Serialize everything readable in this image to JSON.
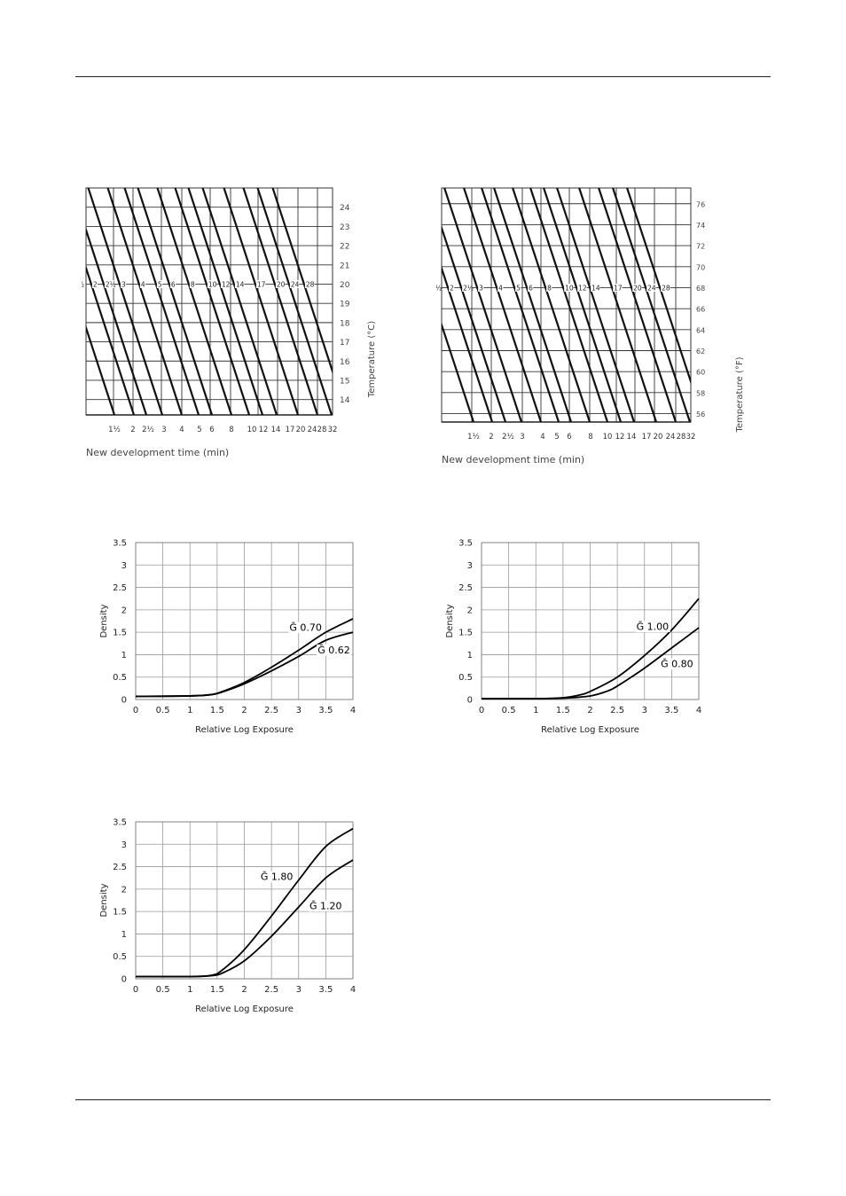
{
  "chart_data": [
    {
      "id": "temp-c",
      "type": "line",
      "title": "",
      "xlabel": "New development time (min)",
      "ylabel": "Temperature (°C)",
      "yticks": [
        "14",
        "15",
        "16",
        "17",
        "18",
        "19",
        "20",
        "21",
        "22",
        "23",
        "24"
      ],
      "xticks": [
        "1½",
        "2",
        "2½",
        "3",
        "4",
        "5",
        "6",
        "8",
        "10",
        "12",
        "14",
        "17",
        "20",
        "24",
        "28",
        "32"
      ],
      "curve_labels_at_20": [
        "1½",
        "2",
        "2½",
        "3",
        "4",
        "5",
        "6",
        "8",
        "10",
        "12",
        "14",
        "17",
        "20",
        "24",
        "28"
      ],
      "ylim": [
        13.2,
        25
      ]
    },
    {
      "id": "temp-f",
      "type": "line",
      "title": "",
      "xlabel": "New development time (min)",
      "ylabel": "Temperature (°F)",
      "yticks": [
        "56",
        "58",
        "60",
        "62",
        "64",
        "66",
        "68",
        "70",
        "72",
        "74",
        "76"
      ],
      "xticks": [
        "1½",
        "2",
        "2½",
        "3",
        "4",
        "5",
        "6",
        "8",
        "10",
        "12",
        "14",
        "17",
        "20",
        "24",
        "28",
        "32"
      ],
      "curve_labels_at_68": [
        "1½",
        "2",
        "2½",
        "3",
        "4",
        "5",
        "6",
        "8",
        "10",
        "12",
        "14",
        "17",
        "20",
        "24",
        "28"
      ],
      "ylim": [
        55.2,
        77.5
      ]
    },
    {
      "id": "curve-1",
      "type": "line",
      "xlabel": "Relative Log Exposure",
      "ylabel": "Density",
      "xlim": [
        0,
        4
      ],
      "ylim": [
        0,
        3.5
      ],
      "xticks": [
        "0",
        "0.5",
        "1",
        "1.5",
        "2",
        "2.5",
        "3",
        "3.5",
        "4"
      ],
      "yticks": [
        "0",
        "0.5",
        "1",
        "1.5",
        "2",
        "2.5",
        "3",
        "3.5"
      ],
      "series": [
        {
          "name": "Ḡ 0.70",
          "x": [
            0,
            1,
            1.4,
            1.6,
            2,
            2.5,
            3,
            3.5,
            4
          ],
          "y": [
            0.07,
            0.08,
            0.11,
            0.18,
            0.38,
            0.72,
            1.1,
            1.5,
            1.8
          ]
        },
        {
          "name": "Ḡ 0.62",
          "x": [
            0,
            1,
            1.4,
            1.6,
            2,
            2.5,
            3,
            3.5,
            4
          ],
          "y": [
            0.07,
            0.08,
            0.11,
            0.17,
            0.35,
            0.64,
            0.96,
            1.32,
            1.5
          ]
        }
      ]
    },
    {
      "id": "curve-2",
      "type": "line",
      "xlabel": "Relative Log Exposure",
      "ylabel": "Density",
      "xlim": [
        0,
        4
      ],
      "ylim": [
        0,
        3.5
      ],
      "xticks": [
        "0",
        "0.5",
        "1",
        "1.5",
        "2",
        "2.5",
        "3",
        "3.5",
        "4"
      ],
      "yticks": [
        "0",
        "0.5",
        "1",
        "1.5",
        "2",
        "2.5",
        "3",
        "3.5"
      ],
      "series": [
        {
          "name": "Ḡ 1.00",
          "x": [
            0,
            1,
            1.5,
            1.8,
            2,
            2.5,
            3,
            3.5,
            4
          ],
          "y": [
            0.02,
            0.02,
            0.04,
            0.1,
            0.18,
            0.5,
            0.98,
            1.55,
            2.25
          ]
        },
        {
          "name": "Ḡ 0.80",
          "x": [
            0,
            1,
            1.5,
            2,
            2.3,
            2.5,
            3,
            3.5,
            4
          ],
          "y": [
            0.02,
            0.02,
            0.03,
            0.08,
            0.18,
            0.3,
            0.7,
            1.15,
            1.6
          ]
        }
      ]
    },
    {
      "id": "curve-3",
      "type": "line",
      "xlabel": "Relative Log Exposure",
      "ylabel": "Density",
      "xlim": [
        0,
        4
      ],
      "ylim": [
        0,
        3.5
      ],
      "xticks": [
        "0",
        "0.5",
        "1",
        "1.5",
        "2",
        "2.5",
        "3",
        "3.5",
        "4"
      ],
      "yticks": [
        "0",
        "0.5",
        "1",
        "1.5",
        "2",
        "2.5",
        "3",
        "3.5"
      ],
      "series": [
        {
          "name": "Ḡ 1.80",
          "x": [
            0,
            1,
            1.4,
            1.6,
            2,
            2.5,
            3,
            3.5,
            4
          ],
          "y": [
            0.05,
            0.05,
            0.08,
            0.2,
            0.65,
            1.4,
            2.2,
            2.95,
            3.35
          ]
        },
        {
          "name": "Ḡ 1.20",
          "x": [
            0,
            1,
            1.4,
            1.6,
            2,
            2.5,
            3,
            3.5,
            4
          ],
          "y": [
            0.05,
            0.05,
            0.07,
            0.13,
            0.4,
            0.95,
            1.6,
            2.25,
            2.65
          ]
        }
      ]
    }
  ]
}
